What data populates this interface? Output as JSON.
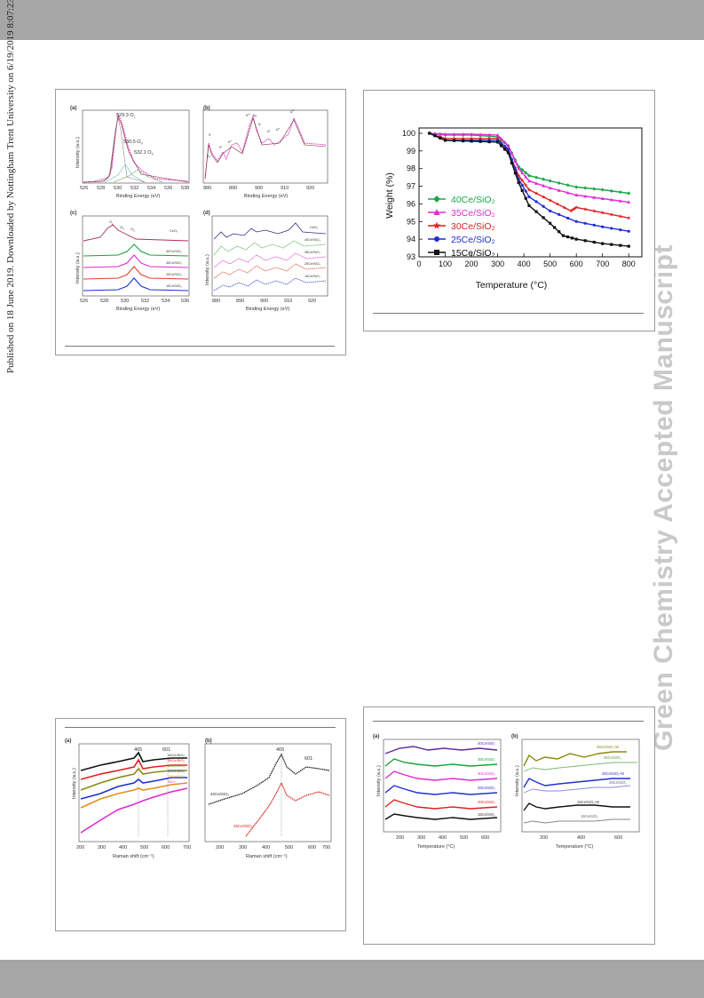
{
  "page": {
    "side_note": "Published on 18 June 2019. Downloaded by Nottingham Trent University on 6/19/2019 8:07:23 AM.",
    "watermark": "Green Chemistry Accepted Manuscript"
  },
  "xps_figure": {
    "panel_a": {
      "letter": "(a)",
      "xlabel": "Binding Energy (eV)",
      "ylabel": "Intensity (a.u.)",
      "ticks": [
        "526",
        "528",
        "530",
        "532",
        "534",
        "536",
        "538"
      ],
      "peaks": [
        "529.3  O",
        "530.5  O",
        "532.1  O"
      ],
      "subs": [
        "L",
        "V",
        "C"
      ]
    },
    "panel_b": {
      "letter": "(b)",
      "xlabel": "Binding Energy (eV)",
      "ticks": [
        "880",
        "890",
        "900",
        "910",
        "920"
      ],
      "labels": [
        "v",
        "v₀",
        "v'",
        "v''",
        "v'''",
        "u₀",
        "u",
        "u'",
        "u''",
        "u'''"
      ]
    },
    "panel_c": {
      "letter": "(c)",
      "xlabel": "Binding Energy (eV)",
      "ylabel": "Intensity (a.u.)",
      "ticks": [
        "526",
        "528",
        "530",
        "532",
        "534",
        "536"
      ],
      "curves": [
        "CeO₂",
        "40Ce/SiO₂",
        "35Ce/SiO₂",
        "25Ce/SiO₂",
        "15Ce/SiO₂"
      ],
      "peak_labels": [
        "O",
        "O",
        "O"
      ],
      "peak_subs": [
        "L",
        "V",
        "C"
      ]
    },
    "panel_d": {
      "letter": "(d)",
      "xlabel": "Binding Energy (eV)",
      "ylabel": "Intensity (a.u.)",
      "ticks": [
        "880",
        "890",
        "900",
        "910",
        "920"
      ],
      "curves": [
        "CeO₂",
        "40Ce/SiO₂",
        "35Ce/SiO₂",
        "25Ce/SiO₂",
        "15Ce/SiO₂"
      ]
    }
  },
  "raman_figure": {
    "panel_a": {
      "letter": "(a)",
      "xlabel": "Raman shift (cm⁻¹)",
      "ylabel": "Intensity (a.u.)",
      "ticks": [
        "200",
        "300",
        "400",
        "500",
        "600",
        "700"
      ],
      "peak_labels": [
        "465",
        "601"
      ],
      "curves": [
        "40Ce/SiO₂",
        "35Ce/SiO₂",
        "30Ce/SiO₂",
        "25Ce/SiO₂",
        "15Ce/SiO₂",
        "SiO₂"
      ]
    },
    "panel_b": {
      "letter": "(b)",
      "xlabel": "Raman shift (cm⁻¹)",
      "ticks": [
        "200",
        "300",
        "400",
        "500",
        "600",
        "700"
      ],
      "peak_labels": [
        "465",
        "601"
      ],
      "curves": [
        "40Ce/SiO₂",
        "25Ce/SiO₂"
      ]
    }
  },
  "tpd_figure": {
    "panel_a": {
      "letter": "(a)",
      "xlabel": "Temperature (°C)",
      "ylabel": "Intensity (a.u.)",
      "ticks": [
        "200",
        "300",
        "400",
        "500",
        "600"
      ],
      "curves": [
        "40Ce/SiO₂",
        "35Ce/SiO₂",
        "30Ce/SiO₂",
        "25Ce/SiO₂",
        "20Ce/SiO₂",
        "15Ce/SiO₂"
      ]
    },
    "panel_b": {
      "letter": "(b)",
      "xlabel": "Temperature (°C)",
      "ylabel": "Intensity (a.u.)",
      "ticks": [
        "200",
        "400",
        "600"
      ],
      "curves": [
        "35Ce/SiO₂-W",
        "35Ce/SiO₂",
        "25Ce/SiO₂-W",
        "25Ce/SiO₂",
        "15Ce/SiO₂-W",
        "15Ce/SiO₂"
      ]
    }
  },
  "chart_data": {
    "type": "line",
    "xlabel": "Temperature (°C)",
    "ylabel": "Weight (%)",
    "xlim": [
      0,
      850
    ],
    "ylim": [
      93,
      100.3
    ],
    "x_ticks": [
      0,
      100,
      200,
      300,
      400,
      500,
      600,
      700,
      800
    ],
    "y_ticks": [
      93,
      94,
      95,
      96,
      97,
      98,
      99,
      100
    ],
    "legend_position": "middle-left",
    "grid": false,
    "series": [
      {
        "name": "40Ce/SiO₂",
        "color": "#1aa64a",
        "marker": "diamond",
        "x": [
          40,
          100,
          200,
          300,
          340,
          380,
          420,
          500,
          600,
          700,
          800
        ],
        "y": [
          100.0,
          99.9,
          99.9,
          99.8,
          99.3,
          98.1,
          97.6,
          97.3,
          96.95,
          96.8,
          96.6
        ]
      },
      {
        "name": "35Ce/SiO₂",
        "color": "#e22bd6",
        "marker": "triangle",
        "x": [
          40,
          100,
          200,
          300,
          340,
          380,
          420,
          500,
          600,
          700,
          800
        ],
        "y": [
          100.0,
          99.95,
          99.95,
          99.9,
          99.3,
          98.0,
          97.3,
          96.9,
          96.5,
          96.3,
          96.1
        ]
      },
      {
        "name": "30Ce/SiO₂",
        "color": "#e01f1f",
        "marker": "star",
        "x": [
          40,
          100,
          200,
          300,
          340,
          380,
          420,
          500,
          580,
          600,
          700,
          800
        ],
        "y": [
          100.0,
          99.7,
          99.7,
          99.7,
          99.0,
          97.6,
          96.8,
          96.2,
          95.6,
          95.8,
          95.5,
          95.2
        ]
      },
      {
        "name": "25Ce/SiO₂",
        "color": "#1f2fd4",
        "marker": "circle",
        "x": [
          40,
          100,
          200,
          300,
          340,
          380,
          420,
          500,
          600,
          700,
          800
        ],
        "y": [
          100.0,
          99.6,
          99.6,
          99.6,
          99.1,
          97.4,
          96.4,
          95.6,
          95.0,
          94.7,
          94.45
        ]
      },
      {
        "name": "15Ce/SiO₂",
        "color": "#111111",
        "marker": "square",
        "x": [
          40,
          100,
          200,
          300,
          340,
          380,
          420,
          500,
          550,
          600,
          700,
          800
        ],
        "y": [
          100.0,
          99.6,
          99.55,
          99.5,
          98.9,
          97.2,
          95.9,
          94.9,
          94.2,
          94.0,
          93.75,
          93.6
        ]
      }
    ]
  }
}
